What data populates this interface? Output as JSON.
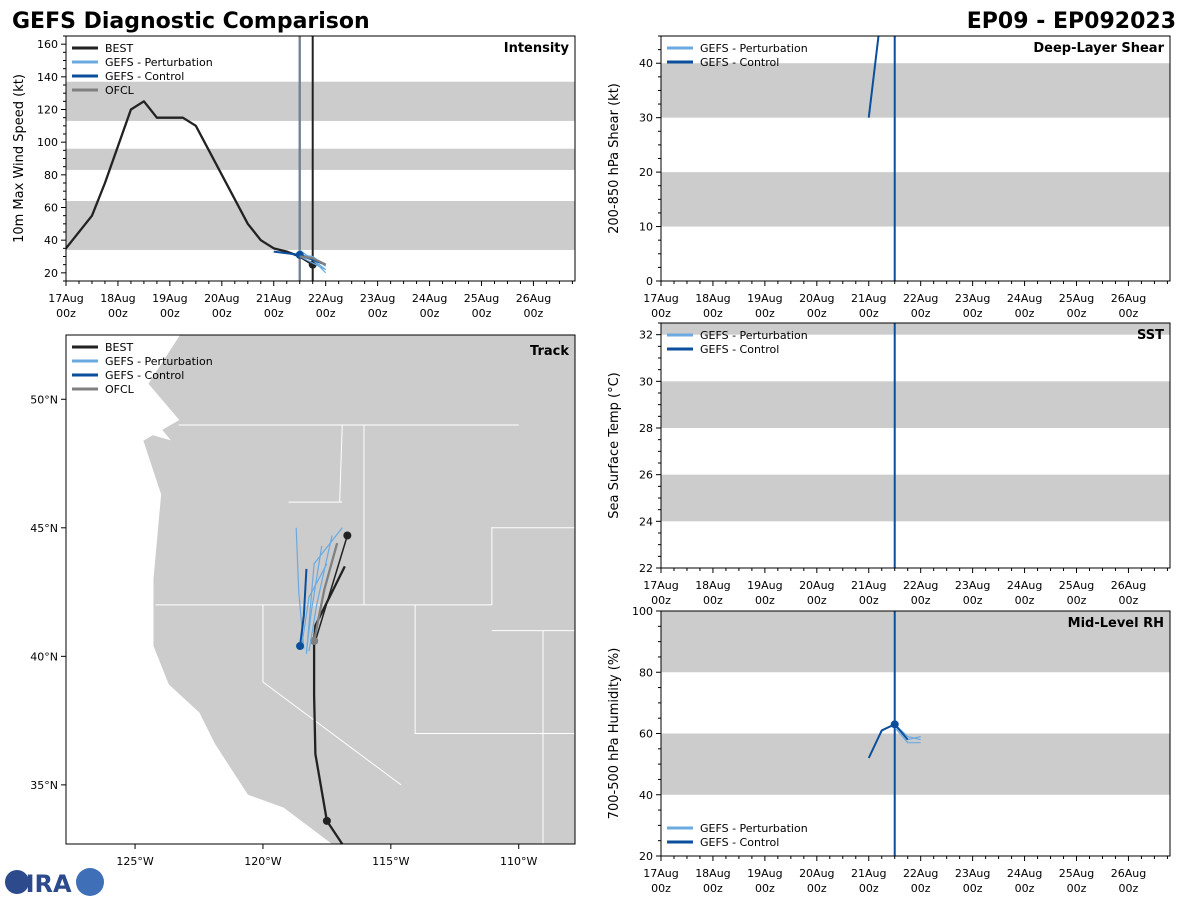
{
  "header": {
    "title": "GEFS Diagnostic Comparison",
    "storm_id": "EP09 - EP092023"
  },
  "colors": {
    "best": "#222222",
    "perturbation": "#6aaae0",
    "control": "#0b4f9c",
    "ofcl": "#808080",
    "band": "#cccccc",
    "land": "#cccccc",
    "border": "#ffffff"
  },
  "logo": {
    "text": "CIRA"
  },
  "chart_data": [
    {
      "id": "intensity",
      "type": "line",
      "title": "Intensity",
      "ylabel": "10m Max Wind Speed (kt)",
      "xlim": [
        0,
        9.8
      ],
      "ylim": [
        15,
        165
      ],
      "x_ticks": [
        0,
        1,
        2,
        3,
        4,
        5,
        6,
        7,
        8,
        9
      ],
      "x_tick_labels": [
        [
          "17Aug",
          "00z"
        ],
        [
          "18Aug",
          "00z"
        ],
        [
          "19Aug",
          "00z"
        ],
        [
          "20Aug",
          "00z"
        ],
        [
          "21Aug",
          "00z"
        ],
        [
          "22Aug",
          "00z"
        ],
        [
          "23Aug",
          "00z"
        ],
        [
          "24Aug",
          "00z"
        ],
        [
          "25Aug",
          "00z"
        ],
        [
          "26Aug",
          "00z"
        ]
      ],
      "y_ticks": [
        20,
        40,
        60,
        80,
        100,
        120,
        140,
        160
      ],
      "bands": [
        [
          34,
          64
        ],
        [
          83,
          96
        ],
        [
          113,
          137
        ]
      ],
      "vlines": [
        {
          "x": 4.5,
          "color": "control"
        },
        {
          "x": 4.5,
          "color": "ofcl"
        },
        {
          "x": 4.75,
          "color": "best"
        }
      ],
      "legend": [
        "BEST",
        "GEFS - Perturbation",
        "GEFS - Control",
        "OFCL"
      ],
      "legend_colors": [
        "best",
        "perturbation",
        "control",
        "ofcl"
      ],
      "series": [
        {
          "name": "BEST",
          "color": "best",
          "width": 2.3,
          "x": [
            0,
            0.5,
            0.75,
            1.25,
            1.5,
            1.75,
            2,
            2.25,
            2.5,
            2.75,
            3,
            3.25,
            3.5,
            3.75,
            4,
            4.25,
            4.5,
            4.75
          ],
          "y": [
            35,
            55,
            75,
            120,
            125,
            115,
            115,
            115,
            110,
            95,
            80,
            65,
            50,
            40,
            35,
            33,
            30,
            25
          ],
          "marker_index": 17
        },
        {
          "name": "GEFS - Perturbation",
          "color": "perturbation",
          "width": 1.2,
          "x": [
            4.5,
            4.75,
            5
          ],
          "y": [
            30,
            28,
            22
          ]
        },
        {
          "name": "GEFS - Perturbation",
          "color": "perturbation",
          "width": 1.2,
          "x": [
            4.5,
            4.75,
            5
          ],
          "y": [
            34,
            28,
            20
          ]
        },
        {
          "name": "GEFS - Perturbation",
          "color": "perturbation",
          "width": 1.2,
          "x": [
            4.5,
            4.75,
            5
          ],
          "y": [
            31,
            30,
            24
          ]
        },
        {
          "name": "GEFS - Perturbation",
          "color": "perturbation",
          "width": 1.2,
          "x": [
            4.5,
            4.75,
            5
          ],
          "y": [
            30,
            26,
            22
          ]
        },
        {
          "name": "GEFS - Control",
          "color": "control",
          "width": 2,
          "x": [
            4,
            4.5,
            4.75,
            5
          ],
          "y": [
            33,
            31,
            28,
            25
          ],
          "marker_index": 1
        },
        {
          "name": "OFCL",
          "color": "ofcl",
          "width": 2.3,
          "x": [
            4.5,
            4.75,
            5
          ],
          "y": [
            30,
            29,
            25
          ]
        }
      ]
    },
    {
      "id": "shear",
      "type": "line",
      "title": "Deep-Layer Shear",
      "ylabel": "200-850 hPa Shear (kt)",
      "xlim": [
        0,
        9.8
      ],
      "ylim": [
        0,
        45
      ],
      "x_ticks": [
        0,
        1,
        2,
        3,
        4,
        5,
        6,
        7,
        8,
        9
      ],
      "x_tick_labels": [
        [
          "17Aug",
          "00z"
        ],
        [
          "18Aug",
          "00z"
        ],
        [
          "19Aug",
          "00z"
        ],
        [
          "20Aug",
          "00z"
        ],
        [
          "21Aug",
          "00z"
        ],
        [
          "22Aug",
          "00z"
        ],
        [
          "23Aug",
          "00z"
        ],
        [
          "24Aug",
          "00z"
        ],
        [
          "25Aug",
          "00z"
        ],
        [
          "26Aug",
          "00z"
        ]
      ],
      "y_ticks": [
        0,
        10,
        20,
        30,
        40
      ],
      "bands": [
        [
          10,
          20
        ],
        [
          30,
          40
        ]
      ],
      "vlines": [
        {
          "x": 4.5,
          "color": "control"
        }
      ],
      "legend": [
        "GEFS - Perturbation",
        "GEFS - Control"
      ],
      "legend_colors": [
        "perturbation",
        "control"
      ],
      "series": [
        {
          "name": "GEFS - Control",
          "color": "control",
          "width": 2,
          "x": [
            4,
            4.2
          ],
          "y": [
            30,
            46
          ]
        }
      ]
    },
    {
      "id": "sst",
      "type": "line",
      "title": "SST",
      "ylabel": "Sea Surface Temp (°C)",
      "xlim": [
        0,
        9.8
      ],
      "ylim": [
        22,
        32.5
      ],
      "x_ticks": [
        0,
        1,
        2,
        3,
        4,
        5,
        6,
        7,
        8,
        9
      ],
      "x_tick_labels": [
        [
          "17Aug",
          "00z"
        ],
        [
          "18Aug",
          "00z"
        ],
        [
          "19Aug",
          "00z"
        ],
        [
          "20Aug",
          "00z"
        ],
        [
          "21Aug",
          "00z"
        ],
        [
          "22Aug",
          "00z"
        ],
        [
          "23Aug",
          "00z"
        ],
        [
          "24Aug",
          "00z"
        ],
        [
          "25Aug",
          "00z"
        ],
        [
          "26Aug",
          "00z"
        ]
      ],
      "y_ticks": [
        22,
        24,
        26,
        28,
        30,
        32
      ],
      "bands": [
        [
          24,
          26
        ],
        [
          28,
          30
        ],
        [
          32,
          32.5
        ]
      ],
      "vlines": [
        {
          "x": 4.5,
          "color": "control"
        }
      ],
      "legend": [
        "GEFS - Perturbation",
        "GEFS - Control"
      ],
      "legend_colors": [
        "perturbation",
        "control"
      ],
      "series": []
    },
    {
      "id": "rh",
      "type": "line",
      "title": "Mid-Level RH",
      "ylabel": "700-500 hPa Humidity (%)",
      "xlim": [
        0,
        9.8
      ],
      "ylim": [
        20,
        100
      ],
      "x_ticks": [
        0,
        1,
        2,
        3,
        4,
        5,
        6,
        7,
        8,
        9
      ],
      "x_tick_labels": [
        [
          "17Aug",
          "00z"
        ],
        [
          "18Aug",
          "00z"
        ],
        [
          "19Aug",
          "00z"
        ],
        [
          "20Aug",
          "00z"
        ],
        [
          "21Aug",
          "00z"
        ],
        [
          "22Aug",
          "00z"
        ],
        [
          "23Aug",
          "00z"
        ],
        [
          "24Aug",
          "00z"
        ],
        [
          "25Aug",
          "00z"
        ],
        [
          "26Aug",
          "00z"
        ]
      ],
      "y_ticks": [
        20,
        40,
        60,
        80,
        100
      ],
      "bands": [
        [
          40,
          60
        ],
        [
          80,
          100
        ]
      ],
      "vlines": [
        {
          "x": 4.5,
          "color": "control"
        }
      ],
      "legend": [
        "GEFS - Perturbation",
        "GEFS - Control"
      ],
      "legend_colors": [
        "perturbation",
        "control"
      ],
      "legend_position": "bottom-left",
      "series": [
        {
          "name": "GEFS - Perturbation",
          "color": "perturbation",
          "width": 1.2,
          "x": [
            4.5,
            4.75,
            5
          ],
          "y": [
            63,
            58,
            59
          ]
        },
        {
          "name": "GEFS - Perturbation",
          "color": "perturbation",
          "width": 1.2,
          "x": [
            4.5,
            4.75,
            5
          ],
          "y": [
            63,
            59,
            58
          ]
        },
        {
          "name": "GEFS - Perturbation",
          "color": "perturbation",
          "width": 1.2,
          "x": [
            4.5,
            4.75,
            5
          ],
          "y": [
            62,
            57,
            57
          ]
        },
        {
          "name": "GEFS - Control",
          "color": "control",
          "width": 2,
          "x": [
            4,
            4.25,
            4.5,
            4.75
          ],
          "y": [
            52,
            61,
            63,
            58
          ],
          "marker_index": 2
        }
      ]
    },
    {
      "id": "track",
      "type": "map",
      "title": "Track",
      "lon_range": [
        -127.7,
        -107.8
      ],
      "lat_range": [
        32.7,
        52.5
      ],
      "lon_ticks": [
        -125,
        -120,
        -115,
        -110
      ],
      "lon_tick_labels": [
        "125°W",
        "120°W",
        "115°W",
        "110°W"
      ],
      "lat_ticks": [
        35,
        40,
        45,
        50
      ],
      "lat_tick_labels": [
        "35°N",
        "40°N",
        "45°N",
        "50°N"
      ],
      "legend": [
        "BEST",
        "GEFS - Perturbation",
        "GEFS - Control",
        "OFCL"
      ],
      "legend_colors": [
        "best",
        "perturbation",
        "control",
        "ofcl"
      ],
      "tracks": [
        {
          "name": "BEST",
          "color": "best",
          "width": 2.3,
          "lon": [
            -116.9,
            -117.5,
            -117.95,
            -118.0,
            -118.0,
            -117.95,
            -116.8
          ],
          "lat": [
            32.7,
            33.6,
            36.2,
            38.5,
            40.6,
            41.2,
            43.5
          ],
          "markers": [
            1,
            4
          ]
        },
        {
          "name": "BEST",
          "color": "best",
          "width": 1.5,
          "lon": [
            -117.95,
            -116.7
          ],
          "lat": [
            40.6,
            44.7
          ],
          "markers": [
            1
          ]
        },
        {
          "name": "OFCL",
          "color": "ofcl",
          "width": 2.3,
          "lon": [
            -118.0,
            -117.6,
            -117.1
          ],
          "lat": [
            40.6,
            42.6,
            44.4
          ],
          "markers": [
            0
          ]
        },
        {
          "name": "GEFS - Perturbation",
          "color": "perturbation",
          "width": 1.2,
          "lon": [
            -118.4,
            -118.6,
            -118.7
          ],
          "lat": [
            40.3,
            42.5,
            45.0
          ]
        },
        {
          "name": "GEFS - Perturbation",
          "color": "perturbation",
          "width": 1.2,
          "lon": [
            -118.2,
            -117.9,
            -117.3
          ],
          "lat": [
            40.2,
            42.0,
            44.7
          ]
        },
        {
          "name": "GEFS - Perturbation",
          "color": "perturbation",
          "width": 1.2,
          "lon": [
            -118.3,
            -118.0,
            -116.9
          ],
          "lat": [
            40.1,
            43.6,
            45.0
          ]
        },
        {
          "name": "GEFS - Perturbation",
          "color": "perturbation",
          "width": 1.2,
          "lon": [
            -118.5,
            -118.2,
            -117.5
          ],
          "lat": [
            40.3,
            42.3,
            43.6
          ]
        },
        {
          "name": "GEFS - Perturbation",
          "color": "perturbation",
          "width": 1.2,
          "lon": [
            -118.3,
            -118.1,
            -117.7
          ],
          "lat": [
            40.2,
            41.8,
            44.3
          ]
        },
        {
          "name": "GEFS - Control",
          "color": "control",
          "width": 2,
          "lon": [
            -118.55,
            -118.4,
            -118.3
          ],
          "lat": [
            40.4,
            41.6,
            43.4
          ],
          "markers": [
            0
          ]
        }
      ]
    }
  ]
}
